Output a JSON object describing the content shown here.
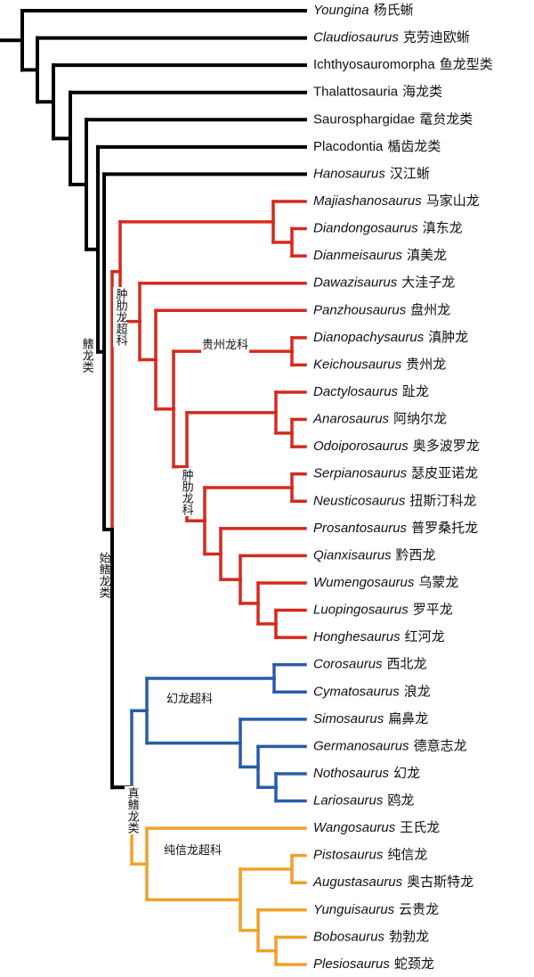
{
  "taxa": [
    {
      "latin": "Youngina",
      "chinese": "杨氏蜥",
      "italic": true
    },
    {
      "latin": "Claudiosaurus",
      "chinese": "克劳迪欧蜥",
      "italic": true
    },
    {
      "latin": "Ichthyosauromorpha",
      "chinese": "鱼龙型类",
      "italic": false
    },
    {
      "latin": "Thalattosauria",
      "chinese": "海龙类",
      "italic": false
    },
    {
      "latin": "Saurosphargidae",
      "chinese": "鼋贠龙类",
      "italic": false
    },
    {
      "latin": "Placodontia",
      "chinese": "楯齿龙类",
      "italic": false
    },
    {
      "latin": "Hanosaurus",
      "chinese": "汉江蜥",
      "italic": true
    },
    {
      "latin": "Majiashanosaurus",
      "chinese": "马家山龙",
      "italic": true
    },
    {
      "latin": "Diandongosaurus",
      "chinese": "滇东龙",
      "italic": true
    },
    {
      "latin": "Dianmeisaurus",
      "chinese": "滇美龙",
      "italic": true
    },
    {
      "latin": "Dawazisaurus",
      "chinese": "大洼子龙",
      "italic": true
    },
    {
      "latin": "Panzhousaurus",
      "chinese": "盘州龙",
      "italic": true
    },
    {
      "latin": "Dianopachysaurus",
      "chinese": "滇肿龙",
      "italic": true
    },
    {
      "latin": "Keichousaurus",
      "chinese": "贵州龙",
      "italic": true
    },
    {
      "latin": "Dactylosaurus",
      "chinese": "趾龙",
      "italic": true
    },
    {
      "latin": "Anarosaurus",
      "chinese": "阿纳尔龙",
      "italic": true
    },
    {
      "latin": "Odoiporosaurus",
      "chinese": "奥多波罗龙",
      "italic": true
    },
    {
      "latin": "Serpianosaurus",
      "chinese": "瑟皮亚诺龙",
      "italic": true
    },
    {
      "latin": "Neusticosaurus",
      "chinese": "扭斯汀科龙",
      "italic": true
    },
    {
      "latin": "Prosantosaurus",
      "chinese": "普罗桑托龙",
      "italic": true
    },
    {
      "latin": "Qianxisaurus",
      "chinese": "黔西龙",
      "italic": true
    },
    {
      "latin": "Wumengosaurus",
      "chinese": "乌蒙龙",
      "italic": true
    },
    {
      "latin": "Luopingosaurus",
      "chinese": "罗平龙",
      "italic": true
    },
    {
      "latin": "Honghesaurus",
      "chinese": "红河龙",
      "italic": true
    },
    {
      "latin": "Corosaurus",
      "chinese": "西北龙",
      "italic": true
    },
    {
      "latin": "Cymatosaurus",
      "chinese": "浪龙",
      "italic": true
    },
    {
      "latin": "Simosaurus",
      "chinese": "扁鼻龙",
      "italic": true
    },
    {
      "latin": "Germanosaurus",
      "chinese": "德意志龙",
      "italic": true
    },
    {
      "latin": "Nothosaurus",
      "chinese": "幻龙",
      "italic": true
    },
    {
      "latin": "Lariosaurus",
      "chinese": "鸥龙",
      "italic": true
    },
    {
      "latin": "Wangosaurus",
      "chinese": "王氏龙",
      "italic": true
    },
    {
      "latin": "Pistosaurus",
      "chinese": "纯信龙",
      "italic": true
    },
    {
      "latin": "Augustasaurus",
      "chinese": "奥古斯特龙",
      "italic": true
    },
    {
      "latin": "Yunguisaurus",
      "chinese": "云贵龙",
      "italic": true
    },
    {
      "latin": "Bobosaurus",
      "chinese": "勃勃龙",
      "italic": true
    },
    {
      "latin": "Plesiosaurus",
      "chinese": "蛇颈龙",
      "italic": true
    }
  ],
  "clades": [
    {
      "label": "鳍龙类"
    },
    {
      "label": "始鳍龙类"
    },
    {
      "label": "肿肋龙超科"
    },
    {
      "label": "贵州龙科"
    },
    {
      "label": "肿肋龙科"
    },
    {
      "label": "幻龙超科"
    },
    {
      "label": "真鳍龙类"
    },
    {
      "label": "纯信龙超科"
    }
  ]
}
